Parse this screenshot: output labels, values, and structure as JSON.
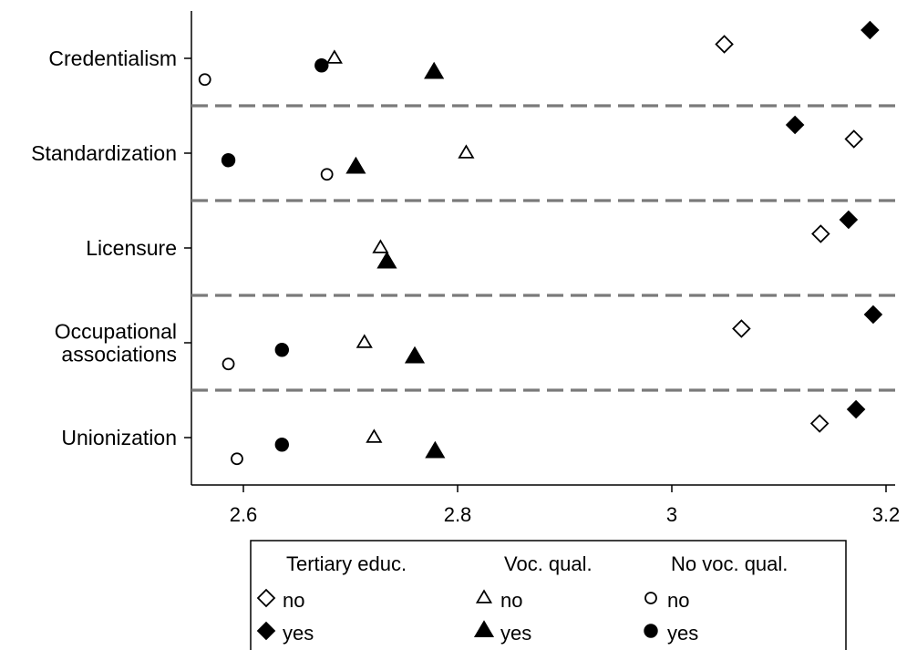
{
  "chart_data": {
    "type": "scatter",
    "title": "",
    "xlabel": "",
    "ylabel": "",
    "xlim": [
      2.555,
      3.215
    ],
    "xticks": [
      {
        "value": 2.6,
        "label": "2.6"
      },
      {
        "value": 2.8,
        "label": "2.8"
      },
      {
        "value": 3.0,
        "label": "3"
      },
      {
        "value": 3.2,
        "label": "3.2"
      }
    ],
    "categories": [
      {
        "lines": [
          "Credentialism"
        ]
      },
      {
        "lines": [
          "Standardization"
        ]
      },
      {
        "lines": [
          "Licensure"
        ]
      },
      {
        "lines": [
          "Occupational",
          "associations"
        ]
      },
      {
        "lines": [
          "Unionization"
        ]
      }
    ],
    "grid": false,
    "separators": "dashed lines between categories",
    "legend_position": "bottom",
    "legend_groups": [
      {
        "title": "Tertiary educ.",
        "series": [
          0,
          1
        ]
      },
      {
        "title": "Voc. qual.",
        "series": [
          2,
          3
        ]
      },
      {
        "title": "No voc. qual.",
        "series": [
          4,
          5
        ]
      }
    ],
    "series": [
      {
        "name": "no",
        "group": "Tertiary educ.",
        "marker": "diamond-open",
        "x": [
          3.049,
          3.17,
          3.139,
          3.065,
          3.138
        ],
        "offset": -1
      },
      {
        "name": "yes",
        "group": "Tertiary educ.",
        "marker": "diamond-filled",
        "x": [
          3.185,
          3.115,
          3.165,
          3.188,
          3.172
        ],
        "offset": -2
      },
      {
        "name": "no",
        "group": "Voc. qual.",
        "marker": "triangle-open",
        "x": [
          2.685,
          2.808,
          2.728,
          2.713,
          2.722
        ],
        "offset": 0
      },
      {
        "name": "yes",
        "group": "Voc. qual.",
        "marker": "triangle-filled",
        "x": [
          2.778,
          2.705,
          2.734,
          2.76,
          2.779
        ],
        "offset": 1
      },
      {
        "name": "no",
        "group": "No voc. qual.",
        "marker": "circle-open",
        "x": [
          2.564,
          2.678,
          null,
          2.586,
          2.594
        ],
        "offset": 1.5
      },
      {
        "name": "yes",
        "group": "No voc. qual.",
        "marker": "circle-filled",
        "x": [
          2.673,
          2.586,
          null,
          2.636,
          2.636
        ],
        "offset": 0.5
      }
    ]
  }
}
